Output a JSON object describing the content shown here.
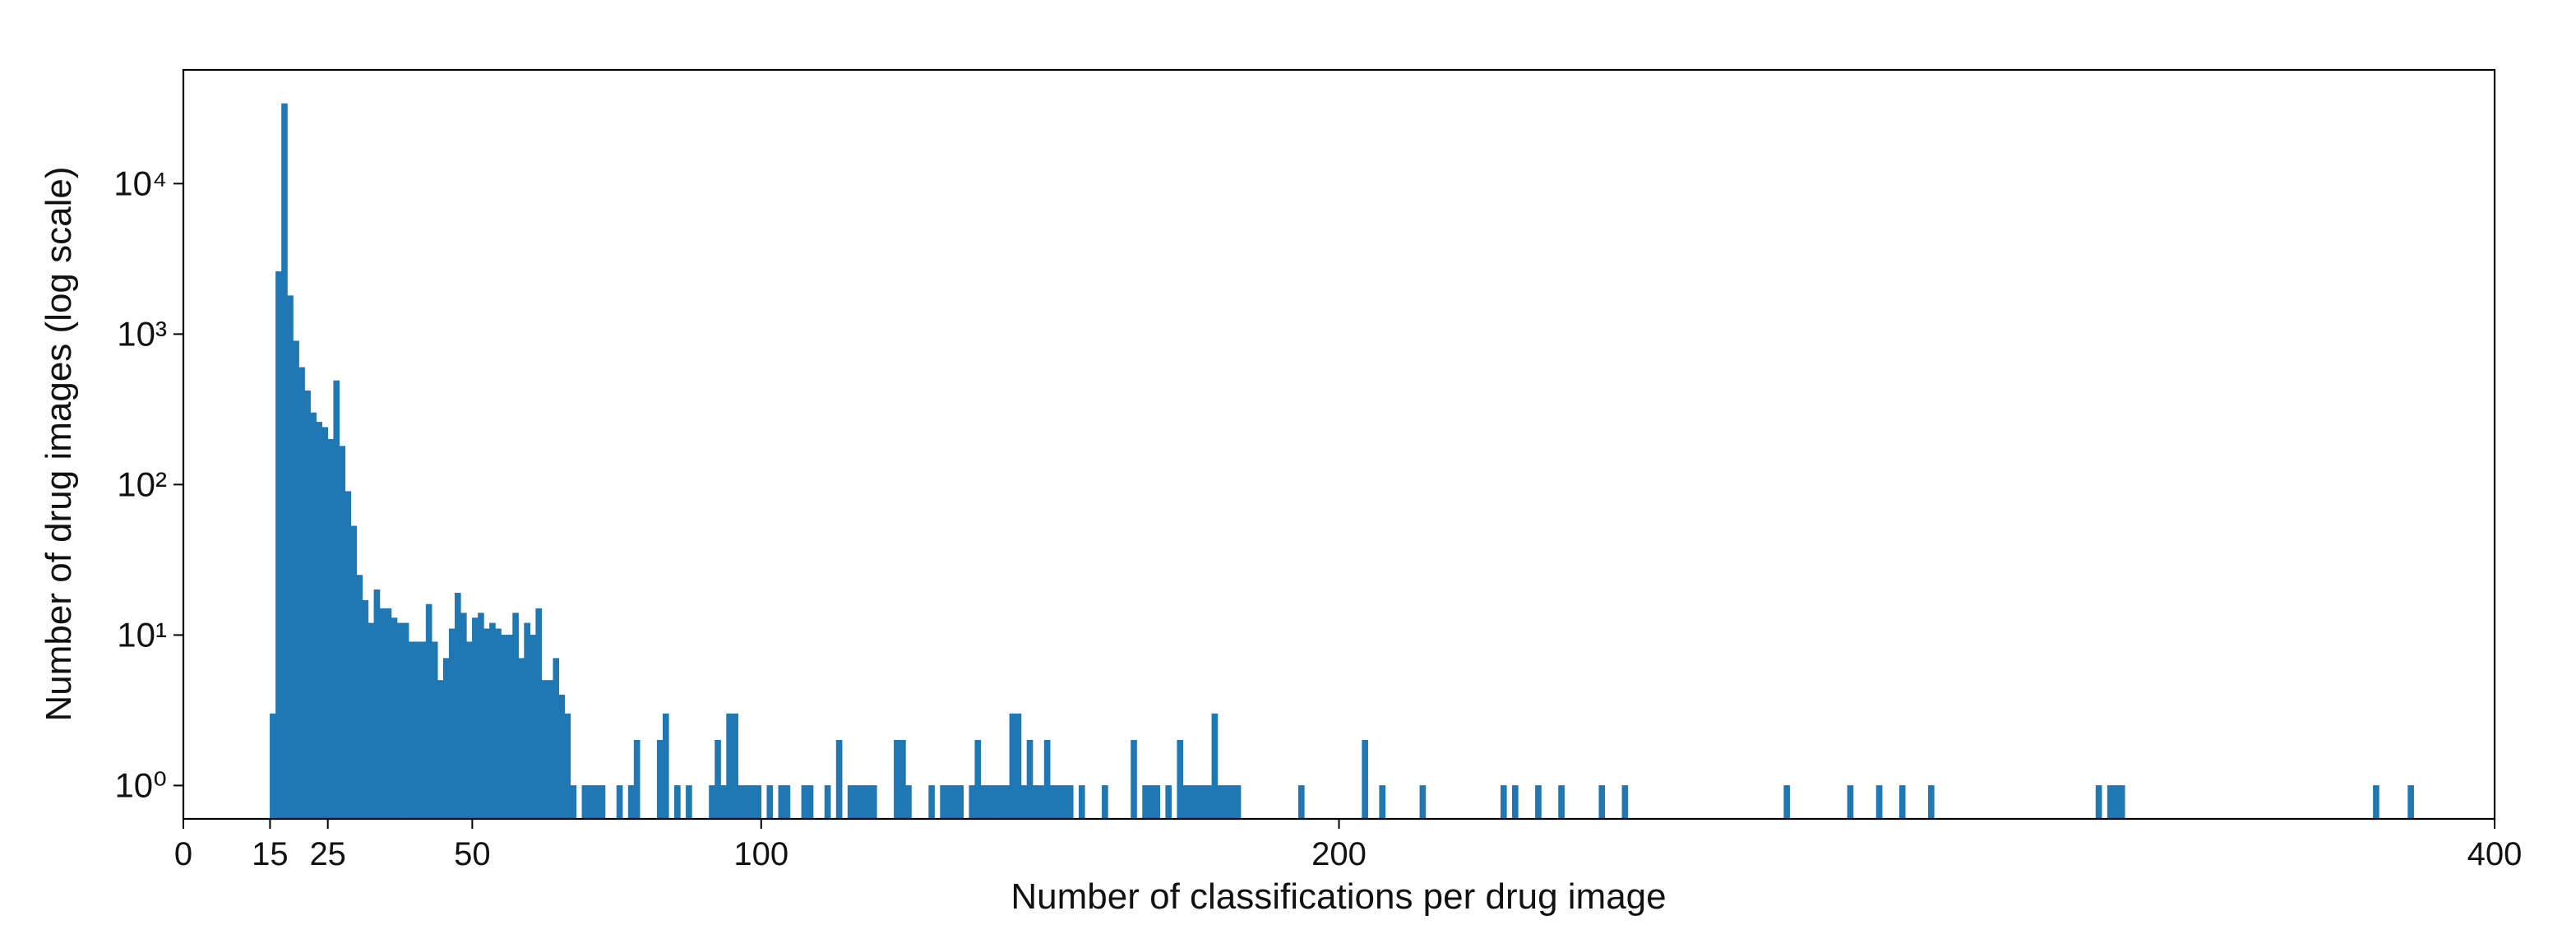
{
  "chart_data": {
    "type": "histogram",
    "xlabel": "Number of classifications per drug image",
    "ylabel": "Number of drug images (log scale)",
    "color": "#1f77b4",
    "log_y": true,
    "xlim": [
      0,
      400
    ],
    "xticks": [
      0,
      15,
      25,
      50,
      100,
      200,
      400
    ],
    "ylim": [
      0.6,
      57000
    ],
    "yticks": [
      {
        "value": 1,
        "label": "10⁰"
      },
      {
        "value": 10,
        "label": "10¹"
      },
      {
        "value": 100,
        "label": "10²"
      },
      {
        "value": 1000,
        "label": "10³"
      },
      {
        "value": 10000,
        "label": "10⁴"
      }
    ],
    "bins": [
      15,
      16,
      17,
      18,
      19,
      20,
      21,
      22,
      23,
      24,
      25,
      26,
      27,
      28,
      29,
      30,
      31,
      32,
      33,
      34,
      35,
      36,
      37,
      38,
      39,
      40,
      41,
      42,
      43,
      44,
      45,
      46,
      47,
      48,
      49,
      50,
      51,
      52,
      53,
      54,
      55,
      56,
      57,
      58,
      59,
      60,
      61,
      62,
      63,
      64,
      65,
      66,
      67,
      68,
      69,
      70,
      71,
      72,
      73,
      75,
      76,
      77,
      78,
      79,
      82,
      83,
      84,
      85,
      86,
      87,
      88,
      91,
      92,
      93,
      94,
      95,
      96,
      97,
      98,
      99,
      100,
      101,
      102,
      103,
      104,
      105,
      107,
      108,
      109,
      111,
      112,
      113,
      114,
      115,
      116,
      117,
      118,
      119,
      120,
      123,
      124,
      125,
      126,
      129,
      130,
      131,
      132,
      133,
      134,
      135,
      136,
      137,
      138,
      139,
      140,
      141,
      142,
      143,
      144,
      145,
      146,
      147,
      148,
      149,
      150,
      151,
      152,
      153,
      154,
      155,
      156,
      159,
      160,
      164,
      165,
      166,
      167,
      168,
      169,
      170,
      171,
      172,
      173,
      174,
      175,
      176,
      177,
      178,
      179,
      180,
      181,
      182,
      183,
      193,
      194,
      204,
      205,
      207,
      208,
      214,
      215,
      228,
      229,
      230,
      231,
      234,
      235,
      238,
      239,
      245,
      246,
      249,
      250,
      277,
      278,
      288,
      289,
      293,
      294,
      297,
      298,
      302,
      303,
      331,
      332,
      333,
      334,
      335,
      336,
      379,
      380,
      385,
      386
    ],
    "counts": [
      3,
      2600,
      34000,
      1800,
      900,
      600,
      420,
      300,
      260,
      240,
      200,
      490,
      180,
      90,
      53,
      25,
      17,
      12,
      20,
      15,
      15,
      13,
      12,
      12,
      9,
      9,
      9,
      16,
      9,
      5,
      7,
      11,
      19,
      14,
      9,
      13,
      14,
      11,
      12,
      11,
      10,
      10,
      14,
      7,
      12,
      10,
      15,
      5,
      5,
      7,
      4,
      3,
      1,
      0,
      1,
      1,
      1,
      1,
      0,
      1,
      0,
      1,
      2,
      0,
      2,
      3,
      0,
      1,
      0,
      1,
      0,
      1,
      2,
      1,
      3,
      3,
      1,
      1,
      1,
      1,
      0,
      1,
      0,
      1,
      1,
      0,
      1,
      1,
      0,
      1,
      0,
      2,
      0,
      1,
      1,
      1,
      1,
      1,
      0,
      2,
      2,
      1,
      0,
      1,
      0,
      1,
      1,
      1,
      1,
      0,
      1,
      2,
      1,
      1,
      1,
      1,
      1,
      3,
      3,
      1,
      2,
      1,
      1,
      2,
      1,
      1,
      1,
      1,
      0,
      1,
      0,
      1,
      0,
      2,
      0,
      1,
      1,
      1,
      0,
      1,
      0,
      2,
      1,
      1,
      1,
      1,
      1,
      3,
      1,
      1,
      1,
      1,
      0,
      1,
      0,
      2,
      0,
      1,
      0,
      1,
      0,
      1,
      0,
      1,
      0,
      1,
      0,
      1,
      0,
      1,
      0,
      1,
      0,
      1,
      0,
      1,
      0,
      1,
      0,
      1,
      0,
      1,
      0,
      1,
      0,
      1,
      1,
      1,
      0,
      1,
      0,
      1
    ]
  }
}
